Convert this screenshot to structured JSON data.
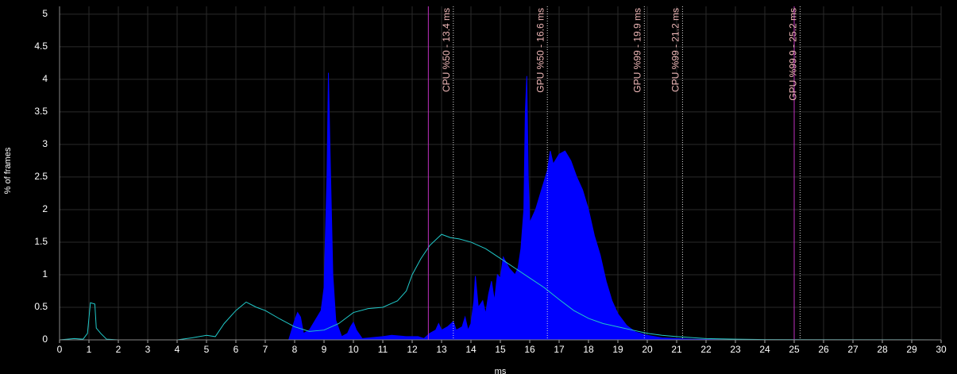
{
  "chart_data": {
    "type": "area-line",
    "y_label": "% of frames",
    "x_label": "ms",
    "xlim": [
      0,
      30
    ],
    "ylim": [
      0,
      5.12
    ],
    "xticks": [
      0,
      1,
      2,
      3,
      4,
      5,
      6,
      7,
      8,
      9,
      10,
      11,
      12,
      13,
      14,
      15,
      16,
      17,
      18,
      19,
      20,
      21,
      22,
      23,
      24,
      25,
      26,
      27,
      28,
      29,
      30
    ],
    "yticks": [
      0,
      0.5,
      1,
      1.5,
      2,
      2.5,
      3,
      3.5,
      4,
      4.5,
      5
    ],
    "grid": true,
    "series": [
      {
        "kind": "area",
        "color": "#0000ff",
        "x": [
          0,
          7.8,
          8.0,
          8.1,
          8.2,
          8.3,
          8.5,
          8.7,
          8.9,
          9.0,
          9.1,
          9.15,
          9.2,
          9.3,
          9.4,
          9.6,
          9.8,
          9.9,
          10.0,
          10.1,
          10.3,
          11.0,
          11.3,
          11.8,
          12.2,
          12.4,
          12.6,
          12.8,
          12.9,
          13.0,
          13.2,
          13.4,
          13.5,
          13.7,
          13.8,
          13.9,
          14.0,
          14.1,
          14.15,
          14.25,
          14.4,
          14.5,
          14.6,
          14.7,
          14.8,
          14.9,
          15.0,
          15.1,
          15.3,
          15.5,
          15.6,
          15.7,
          15.8,
          15.85,
          15.9,
          15.95,
          16.0,
          16.2,
          16.4,
          16.6,
          16.7,
          16.8,
          17.0,
          17.2,
          17.4,
          17.6,
          17.8,
          18.0,
          18.2,
          18.4,
          18.6,
          18.8,
          19.0,
          19.3,
          19.6,
          20.0,
          20.5,
          21.5,
          23,
          30
        ],
        "values": [
          0,
          0,
          0.3,
          0.42,
          0.35,
          0.1,
          0.15,
          0.3,
          0.45,
          0.8,
          2.5,
          4.1,
          3.0,
          1.0,
          0.3,
          0.05,
          0.1,
          0.2,
          0.27,
          0.15,
          0.02,
          0.05,
          0.07,
          0.05,
          0.05,
          0.02,
          0.1,
          0.15,
          0.25,
          0.15,
          0.2,
          0.28,
          0.15,
          0.2,
          0.35,
          0.15,
          0.25,
          0.6,
          0.98,
          0.5,
          0.6,
          0.4,
          0.7,
          0.9,
          0.6,
          1.0,
          0.95,
          1.27,
          1.1,
          1.0,
          1.1,
          1.4,
          2.0,
          3.5,
          4.05,
          2.5,
          1.8,
          2.0,
          2.3,
          2.6,
          2.9,
          2.7,
          2.85,
          2.9,
          2.75,
          2.5,
          2.3,
          2.0,
          1.6,
          1.3,
          0.9,
          0.6,
          0.4,
          0.22,
          0.12,
          0.07,
          0.03,
          0.01,
          0,
          0
        ]
      },
      {
        "kind": "line",
        "color": "#20c8c8",
        "x": [
          0,
          0.5,
          0.8,
          0.95,
          1.05,
          1.2,
          1.25,
          1.4,
          1.6,
          2,
          4,
          4.5,
          5,
          5.3,
          5.6,
          6.0,
          6.35,
          6.7,
          7.0,
          7.5,
          8.0,
          8.5,
          9.0,
          9.5,
          10.0,
          10.5,
          11.0,
          11.5,
          11.8,
          12.0,
          12.3,
          12.6,
          13.0,
          13.3,
          13.6,
          14.0,
          14.5,
          15.0,
          15.5,
          16.0,
          16.5,
          17.0,
          17.5,
          18.0,
          18.5,
          19.0,
          19.5,
          20.0,
          20.5,
          21,
          22,
          23,
          24,
          30
        ],
        "values": [
          0,
          0.02,
          0.01,
          0.1,
          0.57,
          0.55,
          0.18,
          0.1,
          0.01,
          0,
          0,
          0.03,
          0.07,
          0.05,
          0.25,
          0.45,
          0.58,
          0.5,
          0.45,
          0.32,
          0.2,
          0.13,
          0.15,
          0.25,
          0.42,
          0.48,
          0.5,
          0.6,
          0.75,
          1.0,
          1.25,
          1.45,
          1.62,
          1.57,
          1.55,
          1.5,
          1.4,
          1.25,
          1.1,
          0.95,
          0.8,
          0.62,
          0.45,
          0.33,
          0.25,
          0.2,
          0.15,
          0.1,
          0.07,
          0.05,
          0.02,
          0.01,
          0.005,
          0
        ]
      }
    ],
    "range_lines": [
      12.55,
      25.0
    ],
    "markers": [
      {
        "label": "CPU %50 - 13.4 ms",
        "value": 13.4
      },
      {
        "label": "GPU %50 - 16.6 ms",
        "value": 16.6
      },
      {
        "label": "GPU %99 - 19.9 ms",
        "value": 19.9
      },
      {
        "label": "CPU %99 - 21.2 ms",
        "value": 21.2
      },
      {
        "label": "GPU %99.9 - 25.2 ms",
        "value": 25.2
      }
    ]
  }
}
